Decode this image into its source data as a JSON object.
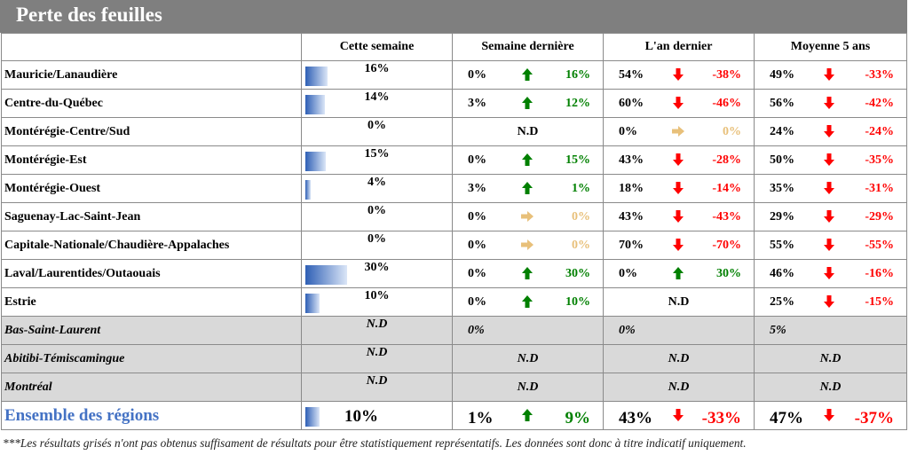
{
  "title": "Perte des feuilles",
  "headers": [
    "Cette semaine",
    "Semaine dernière",
    "L'an dernier",
    "Moyenne 5 ans"
  ],
  "rows": [
    {
      "region": "Mauricie/Lanaudière",
      "week": "16%",
      "bar": 16,
      "lw": {
        "val": "0%",
        "arrow": "up",
        "diff": "16%"
      },
      "ly": {
        "val": "54%",
        "arrow": "down",
        "diff": "-38%"
      },
      "avg": {
        "val": "49%",
        "arrow": "down",
        "diff": "-33%"
      }
    },
    {
      "region": "Centre-du-Québec",
      "week": "14%",
      "bar": 14,
      "lw": {
        "val": "3%",
        "arrow": "up",
        "diff": "12%"
      },
      "ly": {
        "val": "60%",
        "arrow": "down",
        "diff": "-46%"
      },
      "avg": {
        "val": "56%",
        "arrow": "down",
        "diff": "-42%"
      }
    },
    {
      "region": "Montérégie-Centre/Sud",
      "week": "0%",
      "bar": 0,
      "lw": {
        "nd": "N.D"
      },
      "ly": {
        "val": "0%",
        "arrow": "right",
        "diff": "0%"
      },
      "avg": {
        "val": "24%",
        "arrow": "down",
        "diff": "-24%"
      }
    },
    {
      "region": "Montérégie-Est",
      "week": "15%",
      "bar": 15,
      "lw": {
        "val": "0%",
        "arrow": "up",
        "diff": "15%"
      },
      "ly": {
        "val": "43%",
        "arrow": "down",
        "diff": "-28%"
      },
      "avg": {
        "val": "50%",
        "arrow": "down",
        "diff": "-35%"
      }
    },
    {
      "region": "Montérégie-Ouest",
      "week": "4%",
      "bar": 4,
      "lw": {
        "val": "3%",
        "arrow": "up",
        "diff": "1%"
      },
      "ly": {
        "val": "18%",
        "arrow": "down",
        "diff": "-14%"
      },
      "avg": {
        "val": "35%",
        "arrow": "down",
        "diff": "-31%"
      }
    },
    {
      "region": "Saguenay-Lac-Saint-Jean",
      "week": "0%",
      "bar": 0,
      "lw": {
        "val": "0%",
        "arrow": "right",
        "diff": "0%"
      },
      "ly": {
        "val": "43%",
        "arrow": "down",
        "diff": "-43%"
      },
      "avg": {
        "val": "29%",
        "arrow": "down",
        "diff": "-29%"
      }
    },
    {
      "region": "Capitale-Nationale/Chaudière-Appalaches",
      "week": "0%",
      "bar": 0,
      "lw": {
        "val": "0%",
        "arrow": "right",
        "diff": "0%"
      },
      "ly": {
        "val": "70%",
        "arrow": "down",
        "diff": "-70%"
      },
      "avg": {
        "val": "55%",
        "arrow": "down",
        "diff": "-55%"
      }
    },
    {
      "region": "Laval/Laurentides/Outaouais",
      "week": "30%",
      "bar": 30,
      "lw": {
        "val": "0%",
        "arrow": "up",
        "diff": "30%"
      },
      "ly": {
        "val": "0%",
        "arrow": "up",
        "diff": "30%"
      },
      "avg": {
        "val": "46%",
        "arrow": "down",
        "diff": "-16%"
      }
    },
    {
      "region": "Estrie",
      "week": "10%",
      "bar": 10,
      "lw": {
        "val": "0%",
        "arrow": "up",
        "diff": "10%"
      },
      "ly": {
        "nd": "N.D"
      },
      "avg": {
        "val": "25%",
        "arrow": "down",
        "diff": "-15%"
      }
    }
  ],
  "grey_rows": [
    {
      "region": "Bas-Saint-Laurent",
      "week": "N.D",
      "lw": {
        "val": "0%"
      },
      "ly": {
        "val": "0%"
      },
      "avg": {
        "val": "5%"
      }
    },
    {
      "region": "Abitibi-Témiscamingue",
      "week": "N.D",
      "lw": {
        "nd": "N.D"
      },
      "ly": {
        "nd": "N.D"
      },
      "avg": {
        "nd": "N.D"
      }
    },
    {
      "region": "Montréal",
      "week": "N.D",
      "lw": {
        "nd": "N.D"
      },
      "ly": {
        "nd": "N.D"
      },
      "avg": {
        "nd": "N.D"
      }
    }
  ],
  "total": {
    "region": "Ensemble des régions",
    "week": "10%",
    "bar": 10,
    "lw": {
      "val": "1%",
      "arrow": "up",
      "diff": "9%"
    },
    "ly": {
      "val": "43%",
      "arrow": "down",
      "diff": "-33%"
    },
    "avg": {
      "val": "47%",
      "arrow": "down",
      "diff": "-37%"
    }
  },
  "footnote": "***Les résultats grisés n'ont pas obtenus suffisament de résultats pour être statistiquement représentatifs. Les données sont donc à titre indicatif uniquement.",
  "colors": {
    "up": "#008000",
    "down": "#ff0000",
    "right": "#e8c07a",
    "bar": "#2e5fb5",
    "grey_row": "#d9d9d9",
    "total_label": "#4472c4"
  }
}
